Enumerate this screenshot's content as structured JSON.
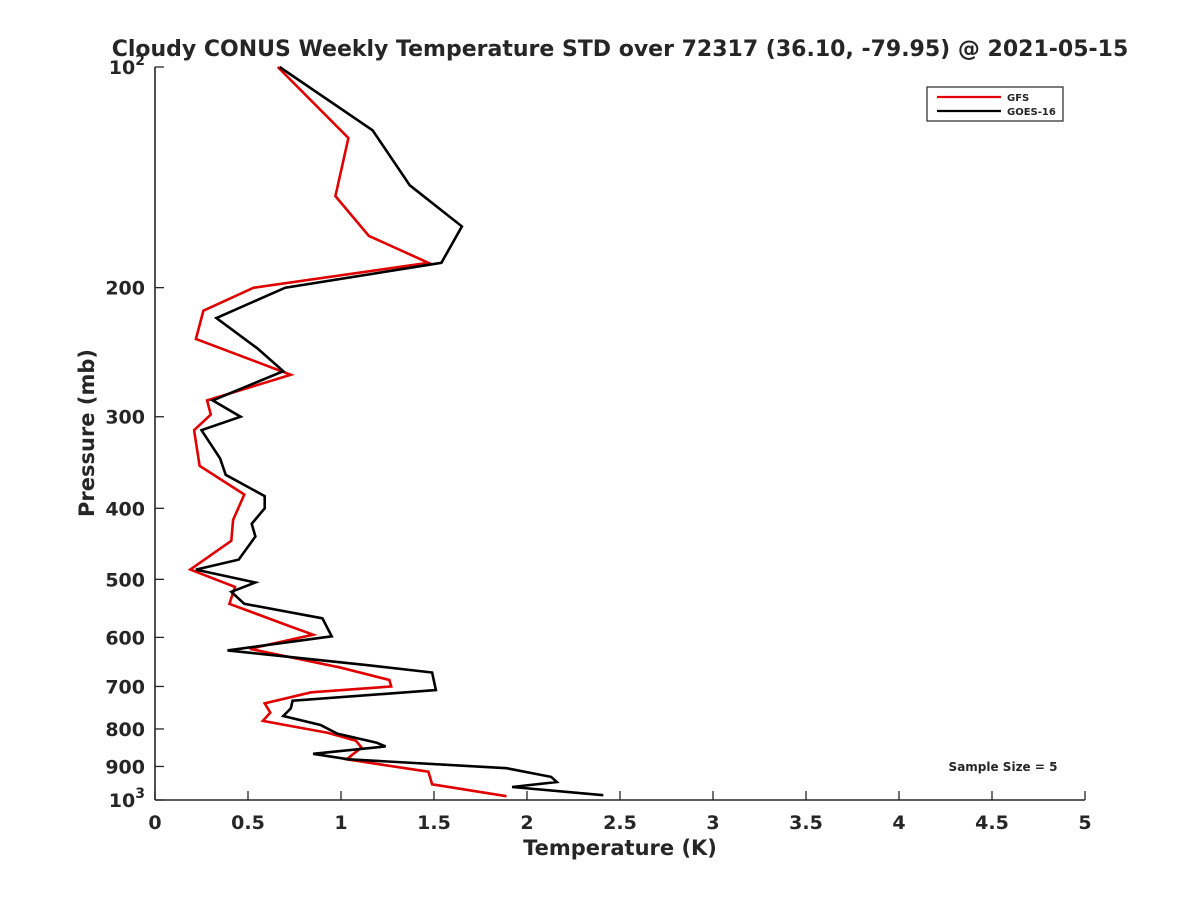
{
  "chart_data": {
    "type": "line",
    "title": "Cloudy CONUS Weekly Temperature STD over 72317 (36.10, -79.95) @ 2021-05-15",
    "xlabel": "Temperature (K)",
    "ylabel": "Pressure (mb)",
    "xlim": [
      0,
      5
    ],
    "ylim": [
      100,
      1000
    ],
    "y_scale": "log",
    "y_reversed": true,
    "x_ticks": [
      0,
      0.5,
      1,
      1.5,
      2,
      2.5,
      3,
      3.5,
      4,
      4.5,
      5
    ],
    "x_tick_labels": [
      "0",
      "0.5",
      "1",
      "1.5",
      "2",
      "2.5",
      "3",
      "3.5",
      "4",
      "4.5",
      "5"
    ],
    "y_ticks": [
      100,
      200,
      300,
      400,
      500,
      600,
      700,
      800,
      900,
      1000
    ],
    "y_tick_labels": [
      {
        "base": "10",
        "exp": "2"
      },
      {
        "base": "200",
        "exp": ""
      },
      {
        "base": "300",
        "exp": ""
      },
      {
        "base": "400",
        "exp": ""
      },
      {
        "base": "500",
        "exp": ""
      },
      {
        "base": "600",
        "exp": ""
      },
      {
        "base": "700",
        "exp": ""
      },
      {
        "base": "800",
        "exp": ""
      },
      {
        "base": "900",
        "exp": ""
      },
      {
        "base": "10",
        "exp": "3"
      }
    ],
    "grid": false,
    "legend_position": "top-right",
    "annotation": "Sample Size = 5",
    "series": [
      {
        "name": "GFS",
        "color": "#e00000",
        "points": [
          [
            0.66,
            100
          ],
          [
            1.04,
            125
          ],
          [
            0.97,
            150
          ],
          [
            1.15,
            170
          ],
          [
            1.47,
            185
          ],
          [
            0.53,
            200
          ],
          [
            0.26,
            215
          ],
          [
            0.22,
            235
          ],
          [
            0.73,
            263
          ],
          [
            0.28,
            285
          ],
          [
            0.3,
            298
          ],
          [
            0.21,
            313
          ],
          [
            0.24,
            350
          ],
          [
            0.48,
            383
          ],
          [
            0.42,
            415
          ],
          [
            0.41,
            443
          ],
          [
            0.19,
            485
          ],
          [
            0.43,
            512
          ],
          [
            0.4,
            540
          ],
          [
            0.73,
            580
          ],
          [
            0.85,
            595
          ],
          [
            0.51,
            622
          ],
          [
            1.0,
            660
          ],
          [
            1.26,
            686
          ],
          [
            1.27,
            700
          ],
          [
            0.84,
            713
          ],
          [
            0.59,
            738
          ],
          [
            0.62,
            760
          ],
          [
            0.58,
            780
          ],
          [
            0.93,
            810
          ],
          [
            1.08,
            830
          ],
          [
            1.11,
            848
          ],
          [
            1.03,
            880
          ],
          [
            1.47,
            915
          ],
          [
            1.49,
            952
          ],
          [
            1.89,
            988
          ]
        ]
      },
      {
        "name": "GOES-16",
        "color": "#000000",
        "points": [
          [
            0.67,
            100
          ],
          [
            1.17,
            122
          ],
          [
            1.37,
            145
          ],
          [
            1.65,
            165
          ],
          [
            1.54,
            185
          ],
          [
            0.7,
            200
          ],
          [
            0.33,
            220
          ],
          [
            0.55,
            242
          ],
          [
            0.69,
            260
          ],
          [
            0.31,
            285
          ],
          [
            0.46,
            300
          ],
          [
            0.25,
            313
          ],
          [
            0.35,
            342
          ],
          [
            0.38,
            360
          ],
          [
            0.59,
            385
          ],
          [
            0.59,
            400
          ],
          [
            0.52,
            420
          ],
          [
            0.54,
            437
          ],
          [
            0.45,
            470
          ],
          [
            0.22,
            485
          ],
          [
            0.54,
            505
          ],
          [
            0.41,
            520
          ],
          [
            0.48,
            540
          ],
          [
            0.9,
            565
          ],
          [
            0.95,
            598
          ],
          [
            0.39,
            625
          ],
          [
            1.15,
            655
          ],
          [
            1.49,
            670
          ],
          [
            1.51,
            708
          ],
          [
            0.74,
            732
          ],
          [
            0.73,
            750
          ],
          [
            0.69,
            768
          ],
          [
            0.89,
            790
          ],
          [
            0.98,
            812
          ],
          [
            1.19,
            835
          ],
          [
            1.24,
            845
          ],
          [
            0.85,
            865
          ],
          [
            1.04,
            880
          ],
          [
            1.89,
            905
          ],
          [
            2.13,
            930
          ],
          [
            2.16,
            945
          ],
          [
            1.92,
            960
          ],
          [
            2.41,
            985
          ]
        ]
      }
    ]
  }
}
